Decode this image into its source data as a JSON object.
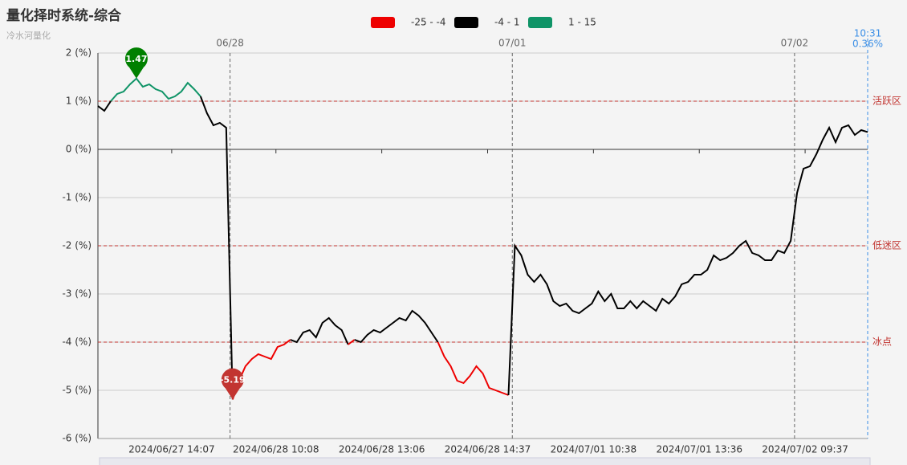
{
  "chart_data": {
    "type": "line",
    "title": "量化择时系统-综合",
    "subtitle": "冷水河量化",
    "ylim": [
      -6,
      2
    ],
    "yticks": [
      {
        "value": 2,
        "label": "2 (%)"
      },
      {
        "value": 1,
        "label": "1 (%)"
      },
      {
        "value": 0,
        "label": "0 (%)"
      },
      {
        "value": -1,
        "label": "-1 (%)"
      },
      {
        "value": -2,
        "label": "-2 (%)"
      },
      {
        "value": -3,
        "label": "-3 (%)"
      },
      {
        "value": -4,
        "label": "-4 (%)"
      },
      {
        "value": -5,
        "label": "-5 (%)"
      },
      {
        "value": -6,
        "label": "-6 (%)"
      }
    ],
    "xlim": [
      0,
      120
    ],
    "xticks": [
      {
        "value": 11.5,
        "label": "2024/06/27 14:07"
      },
      {
        "value": 27.75,
        "label": "2024/06/28 10:08"
      },
      {
        "value": 44.25,
        "label": "2024/06/28 13:06"
      },
      {
        "value": 60.75,
        "label": "2024/06/28 14:37"
      },
      {
        "value": 77.25,
        "label": "2024/07/01 10:38"
      },
      {
        "value": 93.75,
        "label": "2024/07/01 13:36"
      },
      {
        "value": 110.25,
        "label": "2024/07/02 09:37"
      }
    ],
    "grid": true,
    "pieces": [
      {
        "label": "-25 - -4",
        "min": -25,
        "max": -4,
        "color": "#ee0000"
      },
      {
        "label": "-4 - 1",
        "min": -4,
        "max": 1,
        "color": "#000000"
      },
      {
        "label": "1 - 15",
        "min": 1,
        "max": 15,
        "color": "#0f9467"
      }
    ],
    "mark_lines": [
      {
        "value": 1,
        "label": "活跃区"
      },
      {
        "value": -2,
        "label": "低迷区"
      },
      {
        "value": -4,
        "label": "冰点"
      }
    ],
    "date_lines": [
      {
        "value": 20.6,
        "label": "06/28"
      },
      {
        "value": 64.6,
        "label": "07/01"
      },
      {
        "value": 108.6,
        "label": "07/02"
      }
    ],
    "latest": {
      "time": "10:31",
      "label": "0.36%"
    },
    "max_index": 6,
    "min_index": 21,
    "series": [
      {
        "name": "综合",
        "values": [
          0.9,
          0.8,
          1.0,
          1.15,
          1.2,
          1.35,
          1.47,
          1.3,
          1.35,
          1.25,
          1.2,
          1.05,
          1.1,
          1.2,
          1.38,
          1.25,
          1.1,
          0.75,
          0.5,
          0.55,
          0.45,
          -5.19,
          -4.8,
          -4.5,
          -4.35,
          -4.25,
          -4.3,
          -4.35,
          -4.1,
          -4.05,
          -3.95,
          -4.0,
          -3.8,
          -3.75,
          -3.9,
          -3.6,
          -3.5,
          -3.65,
          -3.75,
          -4.05,
          -3.95,
          -4.0,
          -3.85,
          -3.75,
          -3.8,
          -3.7,
          -3.6,
          -3.5,
          -3.55,
          -3.35,
          -3.45,
          -3.6,
          -3.8,
          -4.0,
          -4.3,
          -4.5,
          -4.8,
          -4.85,
          -4.7,
          -4.5,
          -4.65,
          -4.95,
          -5.0,
          -5.05,
          -5.1,
          -2.0,
          -2.2,
          -2.6,
          -2.75,
          -2.6,
          -2.8,
          -3.15,
          -3.25,
          -3.2,
          -3.35,
          -3.4,
          -3.3,
          -3.2,
          -2.95,
          -3.15,
          -3.0,
          -3.3,
          -3.3,
          -3.15,
          -3.3,
          -3.15,
          -3.25,
          -3.35,
          -3.1,
          -3.2,
          -3.05,
          -2.8,
          -2.75,
          -2.6,
          -2.6,
          -2.5,
          -2.2,
          -2.3,
          -2.25,
          -2.15,
          -2.0,
          -1.9,
          -2.15,
          -2.2,
          -2.3,
          -2.3,
          -2.1,
          -2.15,
          -1.9,
          -0.9,
          -0.4,
          -0.35,
          -0.1,
          0.2,
          0.45,
          0.15,
          0.45,
          0.5,
          0.3,
          0.4,
          0.36
        ]
      }
    ]
  }
}
